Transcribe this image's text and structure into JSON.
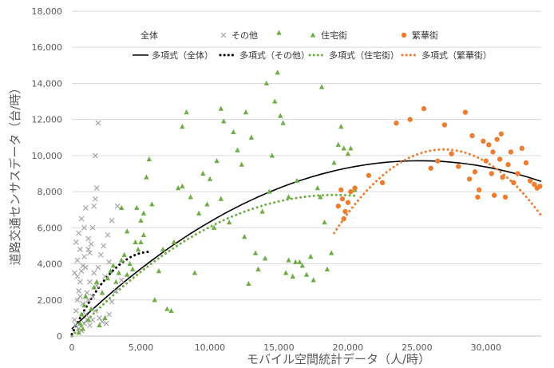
{
  "chart_data": {
    "type": "scatter",
    "xlabel": "モバイル空間統計データ（人/時）",
    "ylabel": "道路交通センサスデータ（台/時）",
    "xlim": [
      0,
      34000
    ],
    "ylim": [
      0,
      18000
    ],
    "xticks": [
      0,
      5000,
      10000,
      15000,
      20000,
      25000,
      30000
    ],
    "xtick_labels": [
      "0",
      "5,000",
      "10,000",
      "15,000",
      "20,000",
      "25,000",
      "30,000"
    ],
    "yticks": [
      0,
      2000,
      4000,
      6000,
      8000,
      10000,
      12000,
      14000,
      16000,
      18000
    ],
    "ytick_labels": [
      "0",
      "2,000",
      "4,000",
      "6,000",
      "8,000",
      "10,000",
      "12,000",
      "14,000",
      "16,000",
      "18,000"
    ],
    "grid": "horizontal",
    "legend_position": "top",
    "legend_header": "全体",
    "colors": {
      "other": "#a6a6a6",
      "residential": "#70ad47",
      "downtown": "#ed7d31",
      "overall_trend": "#000000"
    },
    "series": [
      {
        "name": "その他",
        "marker": "x",
        "color": "#a6a6a6",
        "points": [
          [
            200,
            900
          ],
          [
            300,
            1400
          ],
          [
            400,
            2000
          ],
          [
            500,
            2500
          ],
          [
            600,
            3000
          ],
          [
            700,
            3600
          ],
          [
            400,
            4200
          ],
          [
            600,
            4800
          ],
          [
            500,
            5700
          ],
          [
            700,
            6500
          ],
          [
            900,
            4400
          ],
          [
            1000,
            3800
          ],
          [
            1100,
            2400
          ],
          [
            1200,
            2000
          ],
          [
            1300,
            4600
          ],
          [
            1400,
            5100
          ],
          [
            1500,
            6000
          ],
          [
            1600,
            7200
          ],
          [
            1700,
            7600
          ],
          [
            1800,
            8200
          ],
          [
            1700,
            10000
          ],
          [
            1900,
            11800
          ],
          [
            900,
            6000
          ],
          [
            1200,
            5400
          ],
          [
            1300,
            3000
          ],
          [
            1500,
            2200
          ],
          [
            1700,
            1400
          ],
          [
            2000,
            1000
          ],
          [
            2200,
            800
          ],
          [
            2500,
            700
          ],
          [
            2700,
            1200
          ],
          [
            2900,
            1900
          ],
          [
            3200,
            2500
          ],
          [
            3600,
            3100
          ],
          [
            1900,
            3800
          ],
          [
            2100,
            4500
          ],
          [
            2300,
            5000
          ],
          [
            1000,
            1200
          ],
          [
            800,
            1800
          ],
          [
            600,
            2200
          ],
          [
            300,
            600
          ],
          [
            500,
            400
          ],
          [
            700,
            300
          ],
          [
            900,
            700
          ],
          [
            1100,
            900
          ],
          [
            1300,
            600
          ],
          [
            1500,
            900
          ],
          [
            400,
            3300
          ],
          [
            800,
            3900
          ],
          [
            1200,
            4800
          ],
          [
            2600,
            5600
          ],
          [
            2900,
            6400
          ],
          [
            3300,
            7200
          ],
          [
            1000,
            7100
          ],
          [
            300,
            5200
          ],
          [
            200,
            3500
          ],
          [
            1600,
            3500
          ],
          [
            2400,
            3300
          ],
          [
            1800,
            2800
          ],
          [
            2700,
            4100
          ]
        ]
      },
      {
        "name": "住宅街",
        "marker": "triangle",
        "color": "#70ad47",
        "points": [
          [
            500,
            200
          ],
          [
            600,
            700
          ],
          [
            700,
            1200
          ],
          [
            800,
            400
          ],
          [
            900,
            1700
          ],
          [
            1000,
            2200
          ],
          [
            1200,
            900
          ],
          [
            1400,
            1500
          ],
          [
            1600,
            2700
          ],
          [
            1800,
            3000
          ],
          [
            2000,
            600
          ],
          [
            2200,
            2400
          ],
          [
            2400,
            1000
          ],
          [
            2600,
            3200
          ],
          [
            2800,
            3600
          ],
          [
            3000,
            3900
          ],
          [
            3200,
            3000
          ],
          [
            3400,
            3500
          ],
          [
            3600,
            4200
          ],
          [
            3800,
            4500
          ],
          [
            4000,
            3400
          ],
          [
            4200,
            4000
          ],
          [
            4400,
            3700
          ],
          [
            4600,
            5200
          ],
          [
            4800,
            4800
          ],
          [
            5000,
            5200
          ],
          [
            5200,
            5600
          ],
          [
            5400,
            8800
          ],
          [
            5600,
            9800
          ],
          [
            5800,
            7300
          ],
          [
            4700,
            7100
          ],
          [
            5000,
            6400
          ],
          [
            5200,
            6800
          ],
          [
            4000,
            5800
          ],
          [
            3600,
            7100
          ],
          [
            6000,
            2000
          ],
          [
            6300,
            3600
          ],
          [
            6600,
            4800
          ],
          [
            6900,
            1500
          ],
          [
            7200,
            1400
          ],
          [
            7400,
            5200
          ],
          [
            7700,
            8200
          ],
          [
            8000,
            8300
          ],
          [
            8300,
            12400
          ],
          [
            8000,
            11600
          ],
          [
            8600,
            7700
          ],
          [
            8900,
            3500
          ],
          [
            9200,
            6800
          ],
          [
            9500,
            9000
          ],
          [
            9800,
            7300
          ],
          [
            10000,
            8700
          ],
          [
            10300,
            6000
          ],
          [
            10500,
            9700
          ],
          [
            10800,
            7600
          ],
          [
            11000,
            11900
          ],
          [
            11400,
            6300
          ],
          [
            11700,
            11300
          ],
          [
            12000,
            10300
          ],
          [
            12300,
            9500
          ],
          [
            12500,
            5500
          ],
          [
            12800,
            2900
          ],
          [
            13000,
            11000
          ],
          [
            13300,
            4600
          ],
          [
            13500,
            3700
          ],
          [
            13800,
            6900
          ],
          [
            14000,
            4300
          ],
          [
            14300,
            8000
          ],
          [
            14500,
            10000
          ],
          [
            14700,
            13000
          ],
          [
            14900,
            14600
          ],
          [
            15000,
            16800
          ],
          [
            15100,
            12200
          ],
          [
            15300,
            11800
          ],
          [
            15500,
            3500
          ],
          [
            15700,
            4200
          ],
          [
            16000,
            3300
          ],
          [
            16200,
            4100
          ],
          [
            16500,
            4100
          ],
          [
            16700,
            3900
          ],
          [
            17000,
            3400
          ],
          [
            17300,
            4400
          ],
          [
            17500,
            3100
          ],
          [
            17800,
            8200
          ],
          [
            18000,
            7700
          ],
          [
            18300,
            6300
          ],
          [
            18500,
            3700
          ],
          [
            18800,
            4600
          ],
          [
            19000,
            9600
          ],
          [
            19300,
            10600
          ],
          [
            19500,
            11600
          ],
          [
            19700,
            10400
          ],
          [
            20000,
            10100
          ],
          [
            20200,
            10400
          ],
          [
            20500,
            8100
          ],
          [
            15700,
            7700
          ],
          [
            16300,
            8600
          ],
          [
            12600,
            12400
          ],
          [
            14100,
            14000
          ],
          [
            18100,
            13800
          ],
          [
            10800,
            12600
          ]
        ]
      },
      {
        "name": "繁華街",
        "marker": "circle",
        "color": "#ed7d31",
        "points": [
          [
            19300,
            7200
          ],
          [
            19500,
            8100
          ],
          [
            19600,
            7600
          ],
          [
            19700,
            6500
          ],
          [
            19800,
            6900
          ],
          [
            20000,
            7400
          ],
          [
            20200,
            8000
          ],
          [
            20500,
            8200
          ],
          [
            21500,
            8900
          ],
          [
            22500,
            8500
          ],
          [
            23500,
            11800
          ],
          [
            24500,
            12000
          ],
          [
            25500,
            12600
          ],
          [
            26000,
            9300
          ],
          [
            26500,
            9700
          ],
          [
            27000,
            11700
          ],
          [
            27500,
            10100
          ],
          [
            28000,
            9400
          ],
          [
            28500,
            12400
          ],
          [
            29000,
            11100
          ],
          [
            29200,
            9100
          ],
          [
            29500,
            8100
          ],
          [
            29800,
            10800
          ],
          [
            30000,
            9700
          ],
          [
            30200,
            10600
          ],
          [
            30400,
            9000
          ],
          [
            30600,
            7800
          ],
          [
            30800,
            10900
          ],
          [
            31000,
            9800
          ],
          [
            31200,
            8800
          ],
          [
            31400,
            7700
          ],
          [
            31600,
            9500
          ],
          [
            31800,
            10200
          ],
          [
            32000,
            8500
          ],
          [
            32300,
            9000
          ],
          [
            32600,
            10400
          ],
          [
            32900,
            9600
          ],
          [
            33200,
            8600
          ],
          [
            33500,
            8400
          ],
          [
            33700,
            8200
          ],
          [
            33900,
            8300
          ],
          [
            29400,
            7700
          ],
          [
            30500,
            10200
          ],
          [
            31100,
            11200
          ],
          [
            28800,
            8700
          ]
        ]
      }
    ],
    "trendlines": [
      {
        "name": "多項式（全体）",
        "style": "solid",
        "color": "#000000",
        "x_range": [
          0,
          34000
        ],
        "coefficients": [
          400,
          0.74,
          -1.47e-05
        ]
      },
      {
        "name": "多項式（その他）",
        "style": "dotted",
        "color": "#000000",
        "x_range": [
          0,
          5600
        ],
        "coefficients": [
          100,
          1.6,
          -0.00014
        ]
      },
      {
        "name": "多項式（住宅街）",
        "style": "dotted",
        "color": "#70ad47",
        "x_range": [
          0,
          20500
        ],
        "coefficients": [
          0,
          0.82,
          -2.15e-05
        ]
      },
      {
        "name": "多項式（繁華街）",
        "style": "dotted",
        "color": "#ed7d31",
        "x_range": [
          19000,
          34000
        ],
        "coefficients": [
          -43000,
          3.96,
          -7.35e-05
        ]
      }
    ]
  }
}
